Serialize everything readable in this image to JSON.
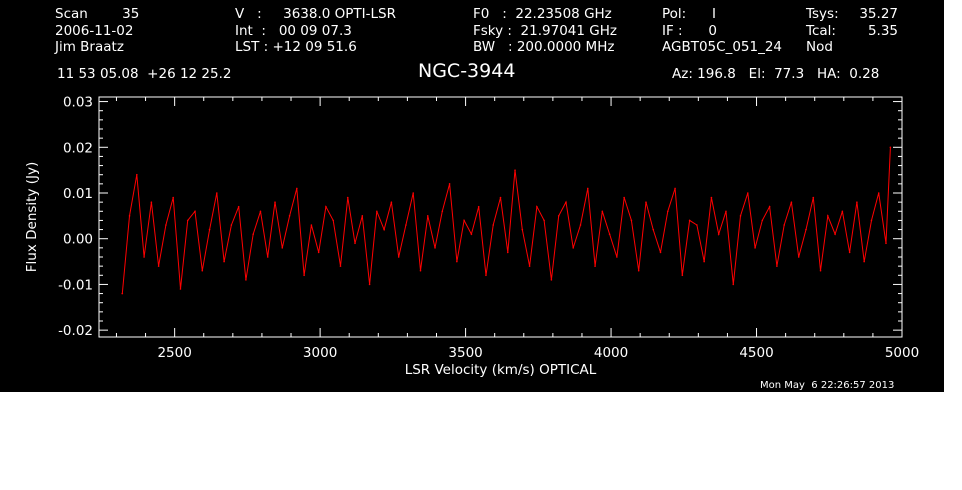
{
  "header": {
    "col1": [
      "Scan        35",
      "2006-11-02",
      "Jim Braatz"
    ],
    "col2": [
      "V   :     3638.0 OPTI-LSR",
      "Int  :   00 09 07.3",
      "LST : +12 09 51.6"
    ],
    "col3": [
      "F0   :  22.23508 GHz",
      "Fsky :  21.97041 GHz",
      "BW   : 200.0000 MHz"
    ],
    "col4": [
      "Pol:      I",
      "IF :      0",
      "AGBT05C_051_24"
    ],
    "col5a": [
      "Tsys:",
      "Tcal:",
      "Nod"
    ],
    "col5b": [
      "35.27",
      "5.35",
      ""
    ],
    "coords": "11 53 05.08  +26 12 25.2",
    "source": "NGC-3944",
    "azelha": "Az: 196.8   El:  77.3   HA:  0.28"
  },
  "timestamp": "Mon May  6 22:26:57 2013",
  "colors": {
    "background": "#000000",
    "axes": "#ffffff",
    "trace": "#ff0000"
  },
  "chart_data": {
    "type": "line",
    "xlabel": "LSR Velocity (km/s) OPTICAL",
    "ylabel": "Flux Density (Jy)",
    "xlim": [
      2240,
      5000
    ],
    "ylim": [
      -0.0215,
      0.031
    ],
    "xticks": [
      2500,
      3000,
      3500,
      4000,
      4500,
      5000
    ],
    "xtick_labels": [
      "2500",
      "3000",
      "3500",
      "4000",
      "4500",
      "5000"
    ],
    "yticks": [
      -0.02,
      -0.01,
      0.0,
      0.01,
      0.02,
      0.03
    ],
    "ytick_labels": [
      "-0.02",
      "-0.01",
      "0.00",
      "0.01",
      "0.02",
      "0.03"
    ],
    "grid": false,
    "series": [
      {
        "color": "#ff0000",
        "x": [
          2320,
          2345,
          2370,
          2395,
          2420,
          2445,
          2470,
          2495,
          2520,
          2545,
          2570,
          2595,
          2620,
          2645,
          2670,
          2695,
          2720,
          2745,
          2770,
          2795,
          2820,
          2845,
          2870,
          2895,
          2920,
          2945,
          2970,
          2995,
          3020,
          3045,
          3070,
          3095,
          3120,
          3145,
          3170,
          3195,
          3220,
          3245,
          3270,
          3295,
          3320,
          3345,
          3370,
          3395,
          3420,
          3445,
          3470,
          3495,
          3520,
          3545,
          3570,
          3595,
          3620,
          3645,
          3670,
          3695,
          3720,
          3745,
          3770,
          3795,
          3820,
          3845,
          3870,
          3895,
          3920,
          3945,
          3970,
          3995,
          4020,
          4045,
          4070,
          4095,
          4120,
          4145,
          4170,
          4195,
          4220,
          4245,
          4270,
          4295,
          4320,
          4345,
          4370,
          4395,
          4420,
          4445,
          4470,
          4495,
          4520,
          4545,
          4570,
          4595,
          4620,
          4645,
          4670,
          4695,
          4720,
          4745,
          4770,
          4795,
          4820,
          4845,
          4870,
          4895,
          4920,
          4945,
          4960
        ],
        "y": [
          -0.012,
          0.005,
          0.014,
          -0.004,
          0.008,
          -0.006,
          0.003,
          0.009,
          -0.011,
          0.004,
          0.006,
          -0.007,
          0.002,
          0.01,
          -0.005,
          0.003,
          0.007,
          -0.009,
          0.001,
          0.006,
          -0.004,
          0.008,
          -0.002,
          0.005,
          0.011,
          -0.008,
          0.003,
          -0.003,
          0.007,
          0.004,
          -0.006,
          0.009,
          -0.001,
          0.005,
          -0.01,
          0.006,
          0.002,
          0.008,
          -0.004,
          0.003,
          0.01,
          -0.007,
          0.005,
          -0.002,
          0.006,
          0.012,
          -0.005,
          0.004,
          0.001,
          0.007,
          -0.008,
          0.003,
          0.009,
          -0.003,
          0.015,
          0.002,
          -0.006,
          0.007,
          0.004,
          -0.009,
          0.005,
          0.008,
          -0.002,
          0.003,
          0.011,
          -0.006,
          0.006,
          0.001,
          -0.004,
          0.009,
          0.004,
          -0.007,
          0.008,
          0.002,
          -0.003,
          0.006,
          0.011,
          -0.008,
          0.004,
          0.003,
          -0.005,
          0.009,
          0.001,
          0.006,
          -0.01,
          0.005,
          0.01,
          -0.002,
          0.004,
          0.007,
          -0.006,
          0.003,
          0.008,
          -0.004,
          0.002,
          0.009,
          -0.007,
          0.005,
          0.001,
          0.006,
          -0.003,
          0.008,
          -0.005,
          0.004,
          0.01,
          -0.001,
          0.02
        ]
      }
    ]
  }
}
